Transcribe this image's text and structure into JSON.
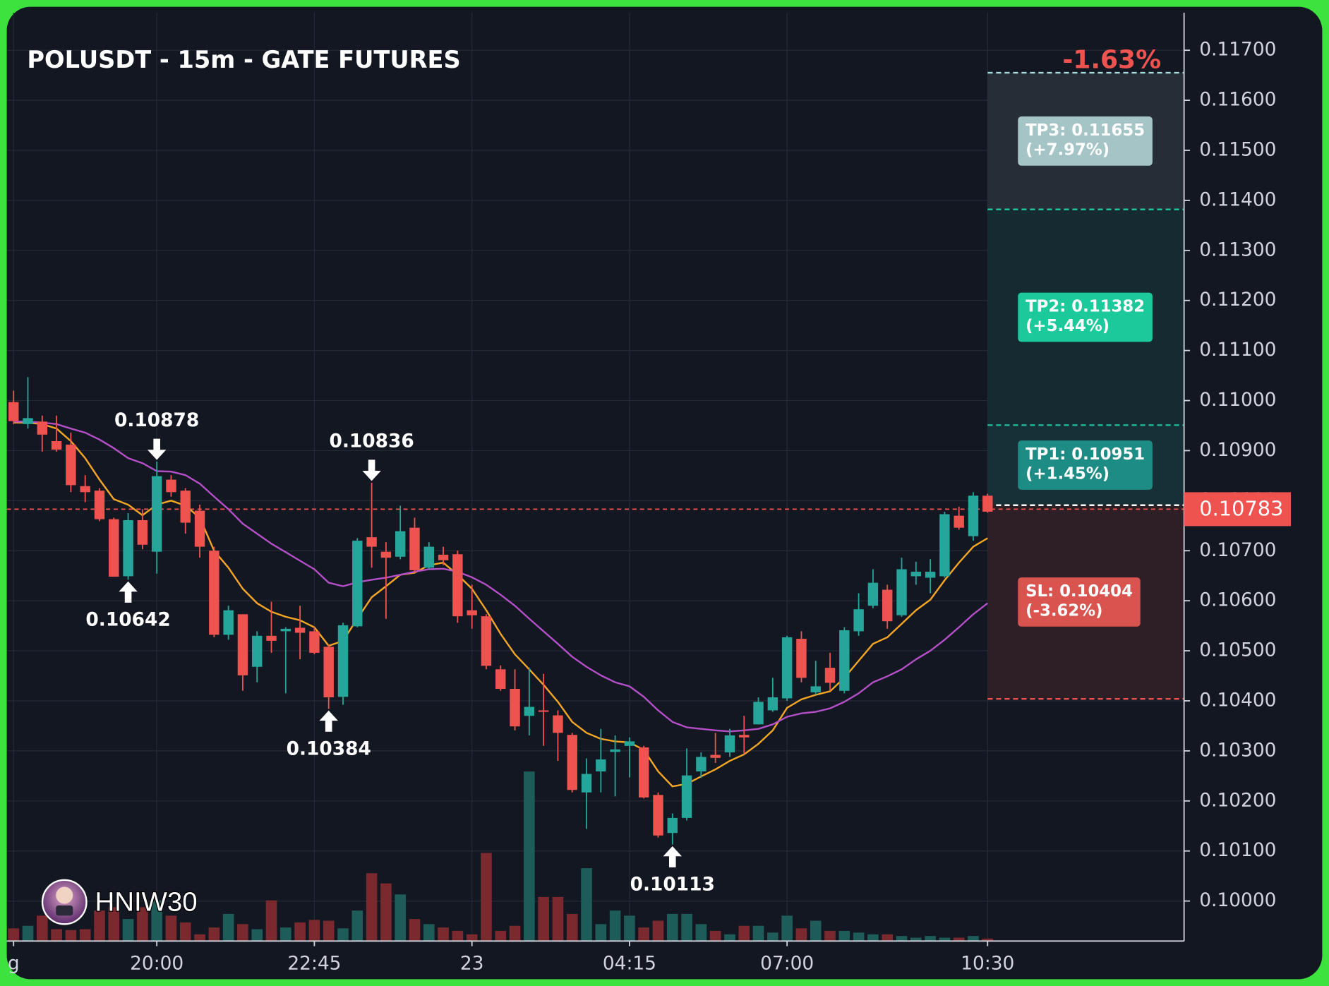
{
  "chart_data": {
    "type": "candlestick",
    "title": "POLUSDT - 15m - GATE FUTURES",
    "change": "-1.63%",
    "watermark": "HNIW30",
    "categories": [
      "g",
      null,
      null,
      null,
      null,
      null,
      null,
      null,
      null,
      null,
      "20:00",
      null,
      null,
      null,
      null,
      null,
      null,
      null,
      null,
      null,
      null,
      "22:45",
      null,
      null,
      null,
      null,
      null,
      null,
      null,
      null,
      null,
      null,
      "23",
      null,
      null,
      null,
      null,
      null,
      null,
      null,
      null,
      null,
      null,
      "04:15",
      null,
      null,
      null,
      null,
      null,
      null,
      null,
      null,
      null,
      null,
      "07:00",
      null,
      null,
      null,
      null,
      null,
      null,
      null,
      null,
      null,
      null,
      null,
      null,
      null,
      "10:30"
    ],
    "open": [
      0.10997,
      0.10953,
      0.10958,
      0.10919,
      0.10912,
      0.10829,
      0.1082,
      0.10763,
      0.10649,
      0.10761,
      0.10698,
      0.10842,
      0.1082,
      0.1078,
      0.107,
      0.10532,
      0.10573,
      0.10468,
      0.1053,
      0.10539,
      0.10546,
      0.10539,
      0.10508,
      0.10408,
      0.10549,
      0.10727,
      0.10698,
      0.10688,
      0.10746,
      0.10666,
      0.10692,
      0.10693,
      0.10581,
      0.10569,
      0.10463,
      0.10424,
      0.1037,
      0.10381,
      0.10371,
      0.10332,
      0.10217,
      0.10259,
      0.10298,
      0.1031,
      0.10307,
      0.10212,
      0.10136,
      0.10166,
      0.10259,
      0.10292,
      0.10297,
      0.10332,
      0.10353,
      0.10381,
      0.10405,
      0.10524,
      0.10417,
      0.10466,
      0.1042,
      0.10539,
      0.1059,
      0.10622,
      0.10571,
      0.10649,
      0.10646,
      0.10649,
      0.1077,
      0.10729,
      0.1081
    ],
    "high": [
      0.1102,
      0.11047,
      0.1097,
      0.1097,
      0.10936,
      0.10851,
      0.10825,
      0.10766,
      0.10775,
      0.10783,
      0.10878,
      0.10851,
      0.10825,
      0.10792,
      0.10708,
      0.1059,
      0.10573,
      0.10539,
      0.10598,
      0.10547,
      0.1059,
      0.10547,
      0.10513,
      0.10556,
      0.10725,
      0.10836,
      0.10717,
      0.1079,
      0.10766,
      0.10717,
      0.10708,
      0.107,
      0.10632,
      0.10573,
      0.10471,
      0.10463,
      0.10466,
      0.10454,
      0.10381,
      0.10336,
      0.10285,
      0.10344,
      0.10331,
      0.10327,
      0.1031,
      0.10217,
      0.10175,
      0.10305,
      0.10297,
      0.10336,
      0.10344,
      0.1037,
      0.10407,
      0.10446,
      0.1053,
      0.10539,
      0.1048,
      0.10496,
      0.10547,
      0.10615,
      0.10663,
      0.10632,
      0.10686,
      0.10678,
      0.10683,
      0.10778,
      0.10788,
      0.10817,
      0.10814
    ],
    "low": [
      0.10953,
      0.10944,
      0.10898,
      0.10898,
      0.10817,
      0.10797,
      0.10759,
      0.10648,
      0.10642,
      0.10703,
      0.10654,
      0.10808,
      0.10734,
      0.10686,
      0.10527,
      0.10522,
      0.1042,
      0.10437,
      0.10496,
      0.10415,
      0.10483,
      0.10493,
      0.10384,
      0.10392,
      0.10547,
      0.10666,
      0.10564,
      0.10683,
      0.10656,
      0.10663,
      0.10671,
      0.10556,
      0.10544,
      0.10463,
      0.1042,
      0.10341,
      0.10331,
      0.1031,
      0.1028,
      0.10217,
      0.10144,
      0.10217,
      0.10209,
      0.10247,
      0.10205,
      0.10127,
      0.10113,
      0.10161,
      0.10246,
      0.10276,
      0.10288,
      0.10293,
      0.10353,
      0.10378,
      0.104,
      0.10437,
      0.10412,
      0.1042,
      0.10415,
      0.1053,
      0.10585,
      0.10544,
      0.10568,
      0.10632,
      0.10615,
      0.10646,
      0.10742,
      0.1072,
      0.10776
    ],
    "close": [
      0.10959,
      0.10965,
      0.10932,
      0.10902,
      0.10831,
      0.10817,
      0.10763,
      0.10648,
      0.10761,
      0.10712,
      0.10849,
      0.10817,
      0.10756,
      0.10708,
      0.10532,
      0.10581,
      0.10451,
      0.1053,
      0.1052,
      0.10544,
      0.10536,
      0.10496,
      0.10407,
      0.10551,
      0.1072,
      0.10708,
      0.10686,
      0.10739,
      0.10661,
      0.10708,
      0.10681,
      0.10569,
      0.10571,
      0.1047,
      0.10424,
      0.10349,
      0.10388,
      0.10378,
      0.10336,
      0.10222,
      0.10254,
      0.10283,
      0.10303,
      0.10319,
      0.10207,
      0.10131,
      0.10166,
      0.10251,
      0.10288,
      0.10286,
      0.10331,
      0.10327,
      0.10398,
      0.10407,
      0.10527,
      0.10446,
      0.10429,
      0.10436,
      0.10541,
      0.10583,
      0.10636,
      0.10559,
      0.10663,
      0.10658,
      0.10658,
      0.10773,
      0.10746,
      0.1081,
      0.10778
    ],
    "volume": [
      15,
      18,
      30,
      14,
      13,
      14,
      36,
      40,
      26,
      40,
      48,
      30,
      22,
      8,
      16,
      32,
      20,
      14,
      48,
      16,
      22,
      25,
      24,
      15,
      36,
      80,
      68,
      55,
      26,
      20,
      16,
      12,
      8,
      104,
      12,
      18,
      200,
      52,
      52,
      32,
      86,
      20,
      36,
      30,
      16,
      24,
      32,
      32,
      20,
      12,
      8,
      18,
      18,
      10,
      30,
      15,
      24,
      12,
      12,
      10,
      8,
      8,
      6,
      4,
      6,
      4,
      4,
      6,
      3
    ],
    "up_color": "#26a69a",
    "down_color": "#ef5350",
    "up_volume_color": "#1d5c58",
    "down_volume_color": "#7a2a2e",
    "moving_averages": [
      {
        "color": "#f5a623",
        "values": [
          0.10956,
          0.10956,
          0.10953,
          0.10944,
          0.10919,
          0.10885,
          0.10842,
          0.10803,
          0.10792,
          0.10771,
          0.10792,
          0.108,
          0.1079,
          0.10766,
          0.107,
          0.10666,
          0.10624,
          0.10595,
          0.10578,
          0.10568,
          0.10561,
          0.10547,
          0.1051,
          0.1052,
          0.10564,
          0.10607,
          0.10629,
          0.10652,
          0.10656,
          0.10671,
          0.10676,
          0.10652,
          0.10624,
          0.10581,
          0.10534,
          0.10493,
          0.10463,
          0.10432,
          0.10398,
          0.10358,
          0.10336,
          0.10324,
          0.10319,
          0.10317,
          0.10302,
          0.10259,
          0.10229,
          0.10234,
          0.10249,
          0.10263,
          0.1028,
          0.10293,
          0.10314,
          0.10341,
          0.10386,
          0.10403,
          0.10412,
          0.10419,
          0.10446,
          0.1048,
          0.10514,
          0.10527,
          0.10554,
          0.10581,
          0.10602,
          0.10641,
          0.10676,
          0.10708,
          0.10725
        ]
      },
      {
        "color": "#b44fc8",
        "values": [
          0.10958,
          0.10958,
          0.10956,
          0.10953,
          0.10944,
          0.10936,
          0.10922,
          0.10905,
          0.10885,
          0.10875,
          0.10859,
          0.10858,
          0.10851,
          0.10834,
          0.10808,
          0.10783,
          0.10754,
          0.10734,
          0.10714,
          0.10697,
          0.1068,
          0.10663,
          0.10636,
          0.10629,
          0.10637,
          0.10642,
          0.10646,
          0.10652,
          0.10658,
          0.10663,
          0.10664,
          0.10658,
          0.10647,
          0.10632,
          0.10612,
          0.1059,
          0.10564,
          0.10539,
          0.10514,
          0.10488,
          0.10468,
          0.10451,
          0.10437,
          0.10429,
          0.10408,
          0.10381,
          0.10358,
          0.10347,
          0.10344,
          0.10341,
          0.10339,
          0.10341,
          0.10344,
          0.10353,
          0.10368,
          0.10375,
          0.10378,
          0.10385,
          0.10398,
          0.10415,
          0.10437,
          0.10449,
          0.10463,
          0.10483,
          0.105,
          0.10522,
          0.10547,
          0.10573,
          0.10595
        ]
      }
    ],
    "annotations": [
      {
        "label": "0.10878",
        "value": 0.10878,
        "at": "high"
      },
      {
        "label": "0.10642",
        "value": 0.10642,
        "at": "low"
      },
      {
        "label": "0.10384",
        "value": 0.10384,
        "at": "low"
      },
      {
        "label": "0.10836",
        "value": 0.10836,
        "at": "high"
      },
      {
        "label": "0.10113",
        "value": 0.10113,
        "at": "low"
      }
    ],
    "entry": {
      "value": 0.10791,
      "color": "#ffffff"
    },
    "targets": [
      {
        "label": "TP3: 0.11655",
        "note": "(+7.97%)",
        "value": 0.11655,
        "line_color": "#a8dede",
        "box_color": "#a4c4c6",
        "zone_color": "#272d36"
      },
      {
        "label": "TP2: 0.11382",
        "note": "(+5.44%)",
        "value": 0.11382,
        "line_color": "#1fc99a",
        "box_color": "#1bc99b",
        "zone_color": "#152a31"
      },
      {
        "label": "TP1: 0.10951",
        "note": "(+1.45%)",
        "value": 0.10951,
        "line_color": "#1fb89a",
        "box_color": "#1d8c84",
        "zone_color": "#172f36"
      }
    ],
    "stop": {
      "label": "SL: 0.10404",
      "note": "(-3.62%)",
      "value": 0.10404,
      "line_color": "#ef5350",
      "box_color": "#d9534f",
      "zone_color": "#2e1f26"
    },
    "current_price": 0.10783,
    "current_price_color": "#ef5350",
    "ylim": [
      0.0992,
      0.11775
    ],
    "yticks": [
      {
        "value": 0.1,
        "label": "0.10000"
      },
      {
        "value": 0.101,
        "label": "0.10100"
      },
      {
        "value": 0.102,
        "label": "0.10200"
      },
      {
        "value": 0.103,
        "label": "0.10300"
      },
      {
        "value": 0.104,
        "label": "0.10400"
      },
      {
        "value": 0.105,
        "label": "0.10500"
      },
      {
        "value": 0.106,
        "label": "0.10600"
      },
      {
        "value": 0.107,
        "label": "0.10700"
      },
      {
        "value": 0.108,
        "label": "0.10800"
      },
      {
        "value": 0.109,
        "label": "0.10900"
      },
      {
        "value": 0.11,
        "label": "0.11000"
      },
      {
        "value": 0.111,
        "label": "0.11100"
      },
      {
        "value": 0.112,
        "label": "0.11200"
      },
      {
        "value": 0.113,
        "label": "0.11300"
      },
      {
        "value": 0.114,
        "label": "0.11400"
      },
      {
        "value": 0.115,
        "label": "0.11500"
      },
      {
        "value": 0.116,
        "label": "0.11600"
      },
      {
        "value": 0.117,
        "label": "0.11700"
      }
    ],
    "grid": true
  }
}
